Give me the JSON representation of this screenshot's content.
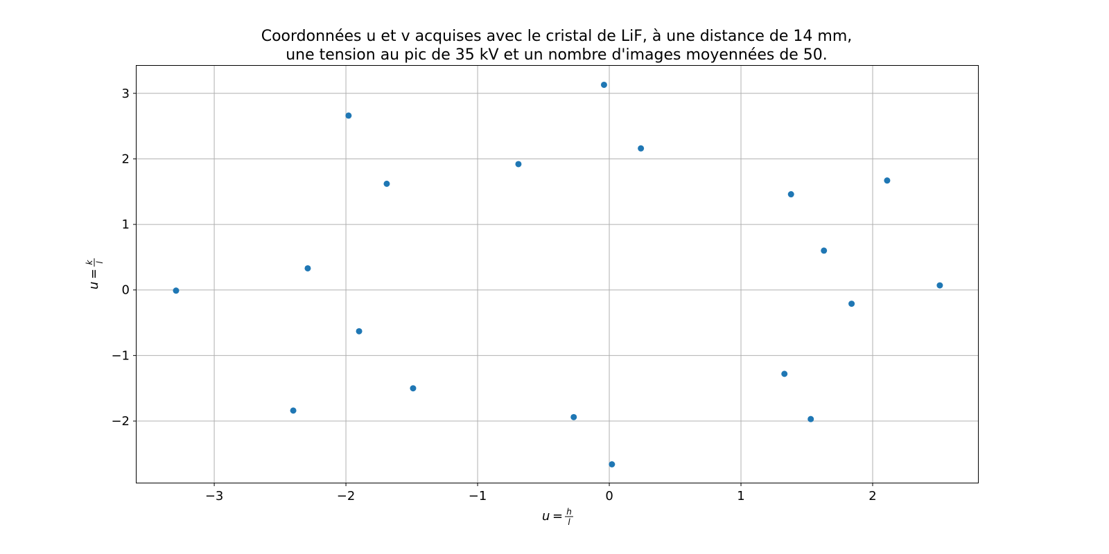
{
  "chart_data": {
    "type": "scatter",
    "title": [
      "Coordonnées u et v acquises avec le cristal de LiF, à une distance de 14 mm,",
      "une tension au pic de 35 kV et un nombre d'images moyennées de 50."
    ],
    "xlabel": {
      "lhs": "u",
      "eq": "=",
      "num": "h",
      "den": "l"
    },
    "ylabel": {
      "lhs": "u",
      "eq": "=",
      "num": "k",
      "den": "l"
    },
    "xlim": [
      -3.59,
      2.8
    ],
    "ylim": [
      -2.94,
      3.42
    ],
    "xticks": [
      -3,
      -2,
      -1,
      0,
      1,
      2
    ],
    "yticks": [
      -2,
      -1,
      0,
      1,
      2,
      3
    ],
    "xtick_labels": [
      "−3",
      "−2",
      "−1",
      "0",
      "1",
      "2"
    ],
    "ytick_labels": [
      "−2",
      "−1",
      "0",
      "1",
      "2",
      "3"
    ],
    "grid": true,
    "marker_color": "#1f77b4",
    "points": [
      {
        "x": -3.29,
        "y": -0.01
      },
      {
        "x": -2.4,
        "y": -1.84
      },
      {
        "x": -2.29,
        "y": 0.33
      },
      {
        "x": -1.98,
        "y": 2.66
      },
      {
        "x": -1.9,
        "y": -0.63
      },
      {
        "x": -1.69,
        "y": 1.62
      },
      {
        "x": -1.49,
        "y": -1.5
      },
      {
        "x": -0.69,
        "y": 1.92
      },
      {
        "x": -0.27,
        "y": -1.94
      },
      {
        "x": -0.04,
        "y": 3.13
      },
      {
        "x": 0.02,
        "y": -2.66
      },
      {
        "x": 0.24,
        "y": 2.16
      },
      {
        "x": 1.33,
        "y": -1.28
      },
      {
        "x": 1.38,
        "y": 1.46
      },
      {
        "x": 1.53,
        "y": -1.97
      },
      {
        "x": 1.63,
        "y": 0.6
      },
      {
        "x": 1.84,
        "y": -0.21
      },
      {
        "x": 2.11,
        "y": 1.67
      },
      {
        "x": 2.51,
        "y": 0.07
      }
    ]
  }
}
